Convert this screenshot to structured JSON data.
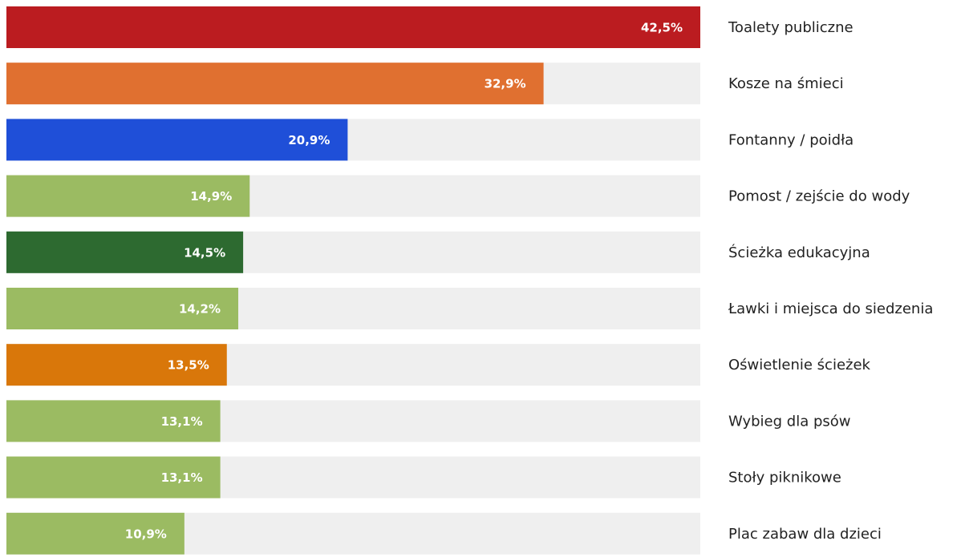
{
  "chart_data": {
    "type": "bar",
    "categories": [
      "Toalety publiczne",
      "Kosze na śmieci",
      "Fontanny / poidła",
      "Pomost / zejście do wody",
      "Ścieżka edukacyjna",
      "Ławki i miejsca do siedzenia",
      "Oświetlenie ścieżek",
      "Wybieg dla psów",
      "Stoły piknikowe",
      "Plac zabaw dla dzieci"
    ],
    "values": [
      42.5,
      32.9,
      20.9,
      14.9,
      14.5,
      14.2,
      13.5,
      13.1,
      13.1,
      10.9
    ],
    "value_labels": [
      "42,5%",
      "32,9%",
      "20,9%",
      "14,9%",
      "14,5%",
      "14,2%",
      "13,5%",
      "13,1%",
      "13,1%",
      "10,9%"
    ],
    "colors": [
      "#bb1c20",
      "#e07030",
      "#1f4fd8",
      "#9bbb62",
      "#2d6a30",
      "#9bbb62",
      "#d9770a",
      "#9bbb62",
      "#9bbb62",
      "#9bbb62"
    ],
    "track_color": "#efefef",
    "xlim": [
      0,
      42.5
    ]
  }
}
